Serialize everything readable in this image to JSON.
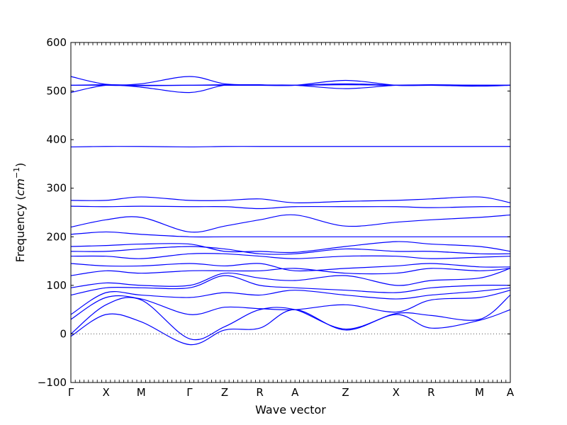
{
  "chart_data": {
    "type": "line",
    "xlabel": "Wave vector",
    "ylabel": "Frequency (cm⁻¹)",
    "ylabel_parts": {
      "text": "Frequency (",
      "unit": "cm",
      "exp": "−1",
      "close": ")"
    },
    "ylim": [
      -100,
      600
    ],
    "yticks": [
      -100,
      0,
      100,
      200,
      300,
      400,
      500,
      600
    ],
    "grid": false,
    "legend": "none",
    "line_color": "#0000ff",
    "zero_line_color": "#555555",
    "path_points": [
      {
        "label": "Γ",
        "x": 0.0
      },
      {
        "label": "X",
        "x": 0.08
      },
      {
        "label": "M",
        "x": 0.16
      },
      {
        "label": "Γ",
        "x": 0.27
      },
      {
        "label": "Z",
        "x": 0.35
      },
      {
        "label": "R",
        "x": 0.43
      },
      {
        "label": "A",
        "x": 0.51
      },
      {
        "label": "Z",
        "x": 0.625
      },
      {
        "label": "X",
        "x": 0.74
      },
      {
        "label": "R",
        "x": 0.82
      },
      {
        "label": "M",
        "x": 0.93
      },
      {
        "label": "A",
        "x": 1.0
      }
    ],
    "x": [
      0.0,
      0.08,
      0.16,
      0.27,
      0.35,
      0.43,
      0.51,
      0.625,
      0.74,
      0.82,
      0.93,
      1.0
    ],
    "series": [
      {
        "values": [
          -5,
          40,
          25,
          -22,
          8,
          12,
          50,
          8,
          40,
          12,
          28,
          50
        ]
      },
      {
        "values": [
          0,
          60,
          70,
          -10,
          15,
          50,
          50,
          10,
          42,
          38,
          30,
          80
        ]
      },
      {
        "values": [
          30,
          75,
          72,
          40,
          55,
          52,
          50,
          60,
          45,
          70,
          75,
          90
        ]
      },
      {
        "values": [
          40,
          85,
          80,
          75,
          85,
          80,
          90,
          80,
          72,
          80,
          88,
          95
        ]
      },
      {
        "values": [
          80,
          95,
          95,
          95,
          120,
          100,
          95,
          90,
          85,
          95,
          100,
          100
        ]
      },
      {
        "values": [
          95,
          105,
          100,
          100,
          125,
          115,
          110,
          120,
          100,
          110,
          115,
          135
        ]
      },
      {
        "values": [
          120,
          130,
          125,
          130,
          130,
          130,
          135,
          125,
          125,
          135,
          130,
          135
        ]
      },
      {
        "values": [
          145,
          140,
          140,
          145,
          140,
          145,
          130,
          135,
          140,
          145,
          138,
          138
        ]
      },
      {
        "values": [
          160,
          160,
          155,
          165,
          165,
          160,
          155,
          160,
          160,
          155,
          158,
          160
        ]
      },
      {
        "values": [
          170,
          170,
          175,
          180,
          175,
          165,
          165,
          175,
          170,
          170,
          165,
          165
        ]
      },
      {
        "values": [
          180,
          182,
          185,
          185,
          170,
          170,
          168,
          180,
          190,
          185,
          180,
          170
        ]
      },
      {
        "values": [
          205,
          210,
          205,
          200,
          200,
          200,
          200,
          200,
          200,
          200,
          200,
          200
        ]
      },
      {
        "values": [
          220,
          235,
          240,
          210,
          222,
          235,
          245,
          222,
          230,
          235,
          240,
          245
        ]
      },
      {
        "values": [
          263,
          262,
          263,
          262,
          262,
          258,
          262,
          262,
          262,
          260,
          262,
          262
        ]
      },
      {
        "values": [
          275,
          275,
          282,
          275,
          275,
          278,
          270,
          273,
          275,
          278,
          282,
          270
        ]
      },
      {
        "values": [
          385,
          386,
          386,
          385,
          386,
          386,
          386,
          386,
          386,
          386,
          386,
          386
        ]
      },
      {
        "values": [
          497,
          512,
          508,
          497,
          512,
          512,
          512,
          515,
          512,
          512,
          510,
          512
        ]
      },
      {
        "values": [
          530,
          514,
          515,
          530,
          515,
          513,
          512,
          513,
          512,
          513,
          512,
          512
        ]
      },
      {
        "values": [
          512,
          513,
          512,
          512,
          513,
          512,
          512,
          522,
          512,
          512,
          512,
          512
        ]
      },
      {
        "values": [
          512,
          512,
          511,
          512,
          512,
          512,
          512,
          505,
          512,
          512,
          512,
          512
        ]
      }
    ]
  }
}
